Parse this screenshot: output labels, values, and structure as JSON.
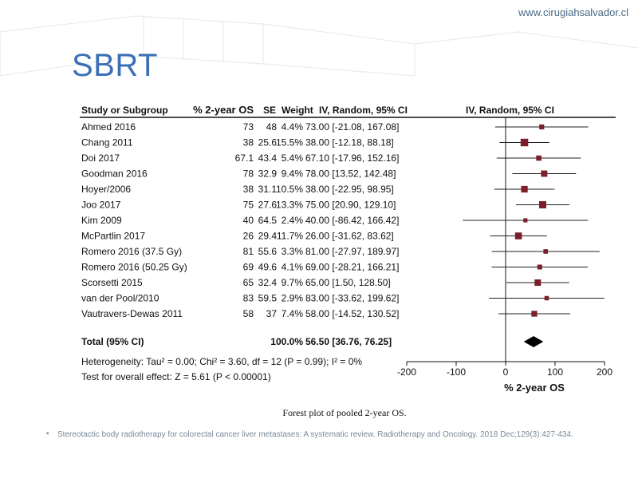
{
  "site_url": "www.cirugiahsalvador.cl",
  "slide_title": "SBRT",
  "reference_text": "Stereotactic body radiotherapy for colorectal cancer liver metastases: A systematic review. Radiotherapy and Oncology. 2018 Dec;129(3):427-434.",
  "chart_data": {
    "type": "forest",
    "caption": "Forest plot of pooled 2-year OS.",
    "headers": {
      "study": "Study or Subgroup",
      "value": "% 2-year OS",
      "se": "SE",
      "weight": "Weight",
      "ci": "IV, Random, 95% CI",
      "plot": "IV, Random, 95% CI"
    },
    "studies": [
      {
        "name": "Ahmed 2016",
        "value": "73",
        "se": "48",
        "weight": "4.4%",
        "ci": "73.00 [-21.08, 167.08]",
        "est": 73.0,
        "lo": -21.08,
        "hi": 167.08,
        "w": 4.4
      },
      {
        "name": "Chang 2011",
        "value": "38",
        "se": "25.6",
        "weight": "15.5%",
        "ci": "38.00 [-12.18, 88.18]",
        "est": 38.0,
        "lo": -12.18,
        "hi": 88.18,
        "w": 15.5
      },
      {
        "name": "Doi 2017",
        "value": "67.1",
        "se": "43.4",
        "weight": "5.4%",
        "ci": "67.10 [-17.96, 152.16]",
        "est": 67.1,
        "lo": -17.96,
        "hi": 152.16,
        "w": 5.4
      },
      {
        "name": "Goodman 2016",
        "value": "78",
        "se": "32.9",
        "weight": "9.4%",
        "ci": "78.00 [13.52, 142.48]",
        "est": 78.0,
        "lo": 13.52,
        "hi": 142.48,
        "w": 9.4
      },
      {
        "name": "Hoyer/2006",
        "value": "38",
        "se": "31.1",
        "weight": "10.5%",
        "ci": "38.00 [-22.95, 98.95]",
        "est": 38.0,
        "lo": -22.95,
        "hi": 98.95,
        "w": 10.5
      },
      {
        "name": "Joo 2017",
        "value": "75",
        "se": "27.6",
        "weight": "13.3%",
        "ci": "75.00 [20.90, 129.10]",
        "est": 75.0,
        "lo": 20.9,
        "hi": 129.1,
        "w": 13.3
      },
      {
        "name": "Kim 2009",
        "value": "40",
        "se": "64.5",
        "weight": "2.4%",
        "ci": "40.00 [-86.42, 166.42]",
        "est": 40.0,
        "lo": -86.42,
        "hi": 166.42,
        "w": 2.4
      },
      {
        "name": "McPartlin 2017",
        "value": "26",
        "se": "29.4",
        "weight": "11.7%",
        "ci": "26.00 [-31.62, 83.62]",
        "est": 26.0,
        "lo": -31.62,
        "hi": 83.62,
        "w": 11.7
      },
      {
        "name": "Romero 2016 (37.5 Gy)",
        "value": "81",
        "se": "55.6",
        "weight": "3.3%",
        "ci": "81.00 [-27.97, 189.97]",
        "est": 81.0,
        "lo": -27.97,
        "hi": 189.97,
        "w": 3.3
      },
      {
        "name": "Romero 2016 (50.25 Gy)",
        "value": "69",
        "se": "49.6",
        "weight": "4.1%",
        "ci": "69.00 [-28.21, 166.21]",
        "est": 69.0,
        "lo": -28.21,
        "hi": 166.21,
        "w": 4.1
      },
      {
        "name": "Scorsetti 2015",
        "value": "65",
        "se": "32.4",
        "weight": "9.7%",
        "ci": "65.00 [1.50, 128.50]",
        "est": 65.0,
        "lo": 1.5,
        "hi": 128.5,
        "w": 9.7
      },
      {
        "name": "van der Pool/2010",
        "value": "83",
        "se": "59.5",
        "weight": "2.9%",
        "ci": "83.00 [-33.62, 199.62]",
        "est": 83.0,
        "lo": -33.62,
        "hi": 199.62,
        "w": 2.9
      },
      {
        "name": "Vautravers-Dewas 2011",
        "value": "58",
        "se": "37",
        "weight": "7.4%",
        "ci": "58.00 [-14.52, 130.52]",
        "est": 58.0,
        "lo": -14.52,
        "hi": 130.52,
        "w": 7.4
      }
    ],
    "total": {
      "name": "Total (95% CI)",
      "weight": "100.0%",
      "ci": "56.50 [36.76, 76.25]",
      "est": 56.5,
      "lo": 36.76,
      "hi": 76.25
    },
    "heterogeneity": "Heterogeneity: Tau² = 0.00; Chi² = 3.60, df = 12 (P = 0.99); I² = 0%",
    "overall_effect": "Test for overall effect: Z = 5.61 (P < 0.00001)",
    "x_ticks": [
      -200,
      -100,
      0,
      100,
      200
    ],
    "x_tick_labels": [
      "-200",
      "-100",
      "0",
      "100",
      "200"
    ],
    "xlim": [
      -200,
      200
    ],
    "xlabel": "% 2-year OS",
    "marker_color": "#7a1f2b"
  }
}
